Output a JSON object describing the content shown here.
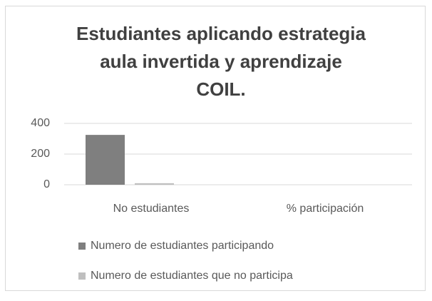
{
  "chart_data": {
    "type": "bar",
    "title": "Estudiantes aplicando estrategia aula invertida y aprendizaje COIL.",
    "categories": [
      "No estudiantes",
      "% participación"
    ],
    "series": [
      {
        "name": "Numero de estudiantes participando",
        "color": "#7f7f7f",
        "values": [
          325,
          0
        ]
      },
      {
        "name": "Numero de estudiantes que no participa",
        "color": "#bfbfbf",
        "values": [
          10,
          0
        ]
      }
    ],
    "ylim": [
      0,
      400
    ],
    "yticks": [
      0,
      200,
      400
    ],
    "grid": true,
    "legend": "bottom"
  }
}
